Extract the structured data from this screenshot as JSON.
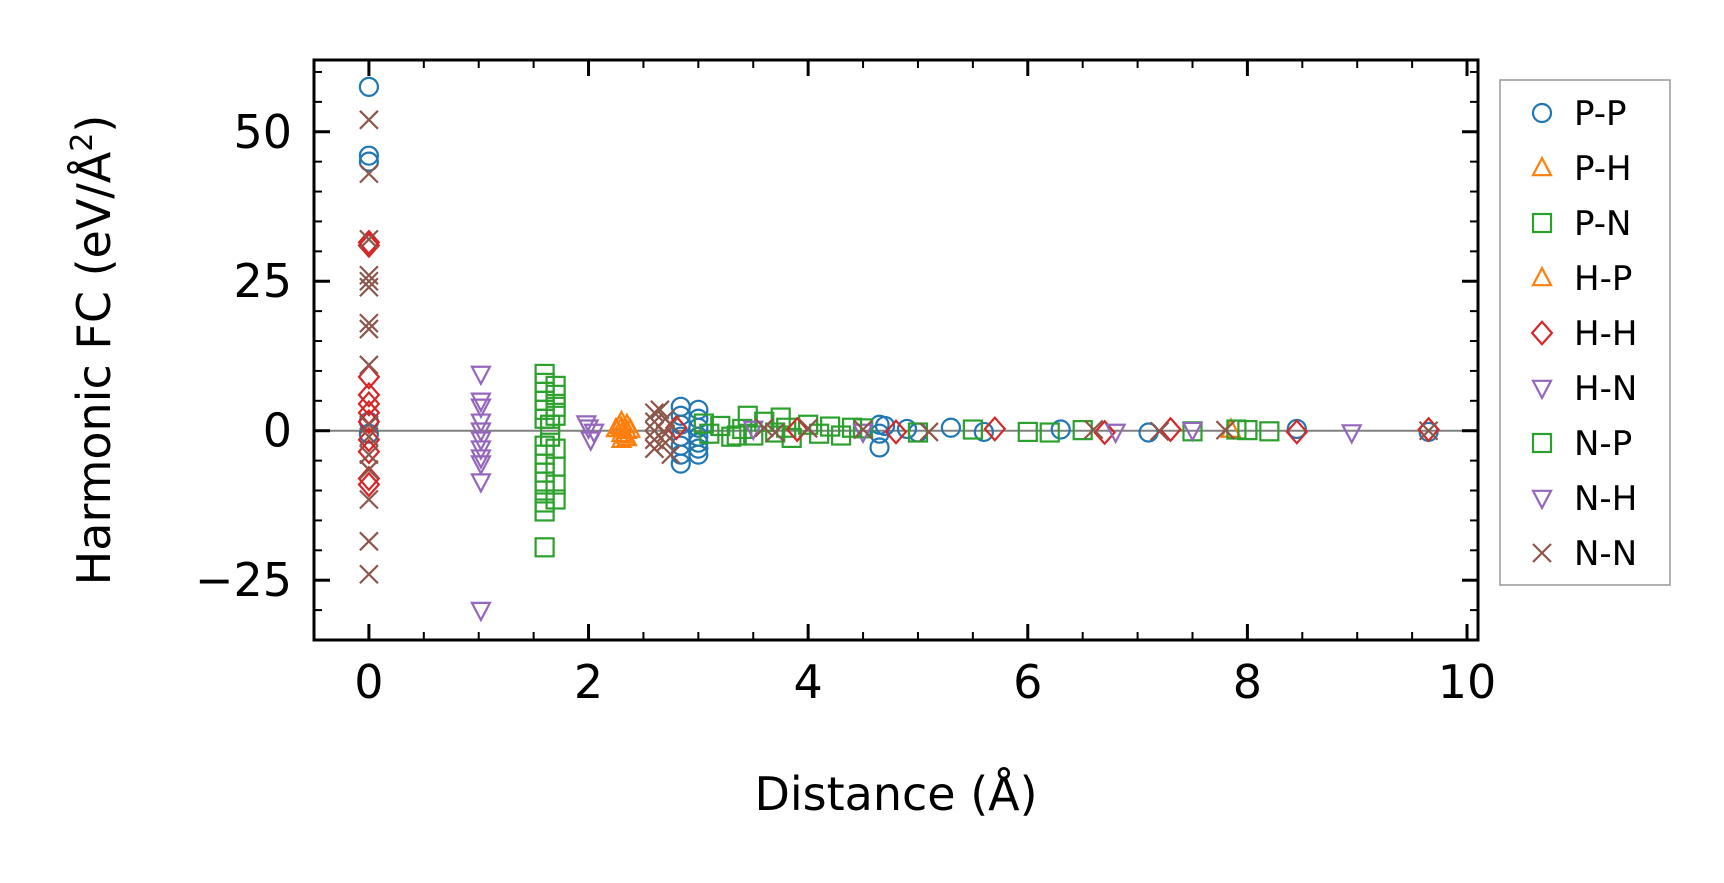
{
  "chart_data": {
    "type": "scatter",
    "title": "",
    "xlabel": "Distance (Å)",
    "ylabel": "Harmonic FC (eV/Å²)",
    "ylabel_parts": {
      "main": "Harmonic FC (eV/Å",
      "sup": "2",
      "end": ")"
    },
    "xlim": [
      -0.5,
      10.1
    ],
    "ylim": [
      -35,
      62
    ],
    "x_ticks": [
      0,
      2,
      4,
      6,
      8,
      10
    ],
    "x_tick_labels": [
      "0",
      "2",
      "4",
      "6",
      "8",
      "10"
    ],
    "y_ticks": [
      -25,
      0,
      25,
      50
    ],
    "y_tick_labels": [
      "−25",
      "0",
      "25",
      "50"
    ],
    "zero_line": true,
    "grid": false,
    "legend_position": "outside-right",
    "series": [
      {
        "name": "P-P",
        "marker": "circle",
        "color": "#1f77b4",
        "points": [
          [
            0,
            57.5
          ],
          [
            0,
            46
          ],
          [
            0,
            45
          ],
          [
            0,
            1.5
          ],
          [
            0,
            -0.5
          ],
          [
            2.84,
            4
          ],
          [
            2.84,
            2.5
          ],
          [
            2.84,
            1
          ],
          [
            2.84,
            -1
          ],
          [
            2.84,
            -2.5
          ],
          [
            2.84,
            -4
          ],
          [
            2.84,
            -5.5
          ],
          [
            3.0,
            3.5
          ],
          [
            3.0,
            2
          ],
          [
            3.0,
            0.5
          ],
          [
            3.0,
            -1
          ],
          [
            3.0,
            -2
          ],
          [
            3.0,
            -3
          ],
          [
            3.0,
            -4
          ],
          [
            4.65,
            1
          ],
          [
            4.65,
            -0.5
          ],
          [
            4.65,
            -2.8
          ],
          [
            4.7,
            0.8
          ],
          [
            4.9,
            0.3
          ],
          [
            5.0,
            -0.3
          ],
          [
            5.3,
            0.5
          ],
          [
            5.6,
            -0.2
          ],
          [
            6.3,
            0.2
          ],
          [
            7.1,
            -0.3
          ],
          [
            8.45,
            0.3
          ],
          [
            9.65,
            -0.2
          ]
        ]
      },
      {
        "name": "P-H",
        "marker": "triangle-up",
        "color": "#ff7f0e",
        "points": [
          [
            2.3,
            1.5
          ],
          [
            2.3,
            0.5
          ],
          [
            2.3,
            -0.5
          ],
          [
            2.3,
            -1.5
          ],
          [
            2.35,
            1
          ],
          [
            2.35,
            0
          ],
          [
            2.35,
            -1.2
          ],
          [
            2.25,
            0.3
          ],
          [
            7.85,
            0.2
          ]
        ]
      },
      {
        "name": "P-N",
        "marker": "square",
        "color": "#2ca02c",
        "points": [
          [
            1.6,
            9.5
          ],
          [
            1.6,
            8
          ],
          [
            1.6,
            6.5
          ],
          [
            1.6,
            5
          ],
          [
            1.6,
            3.5
          ],
          [
            1.6,
            2
          ],
          [
            1.6,
            -2.5
          ],
          [
            1.6,
            -4
          ],
          [
            1.6,
            -5.5
          ],
          [
            1.6,
            -7
          ],
          [
            1.6,
            -8.5
          ],
          [
            1.6,
            -10
          ],
          [
            1.6,
            -12
          ],
          [
            1.6,
            -13.5
          ],
          [
            1.6,
            -19.5
          ],
          [
            1.7,
            7.5
          ],
          [
            1.7,
            6
          ],
          [
            1.7,
            4
          ],
          [
            1.7,
            2.5
          ],
          [
            1.7,
            -3
          ],
          [
            1.7,
            -6
          ],
          [
            1.7,
            -9
          ],
          [
            1.7,
            -11.5
          ],
          [
            3.05,
            1.2
          ],
          [
            3.1,
            -0.5
          ],
          [
            3.2,
            0.8
          ],
          [
            3.3,
            -1
          ],
          [
            3.4,
            0.3
          ],
          [
            3.45,
            2.5
          ],
          [
            3.5,
            -0.8
          ],
          [
            3.6,
            1.5
          ],
          [
            3.7,
            -0.3
          ],
          [
            3.75,
            2.2
          ],
          [
            3.8,
            0.5
          ],
          [
            3.85,
            -1.2
          ],
          [
            4.0,
            1
          ],
          [
            4.1,
            -0.5
          ],
          [
            4.2,
            0.7
          ],
          [
            4.3,
            -0.8
          ],
          [
            4.5,
            0.4
          ],
          [
            5.0,
            -0.3
          ],
          [
            5.5,
            0.2
          ],
          [
            6.0,
            -0.2
          ],
          [
            6.5,
            0.1
          ],
          [
            7.5,
            -0.1
          ],
          [
            8.0,
            0.1
          ],
          [
            8.2,
            -0.1
          ]
        ]
      },
      {
        "name": "H-P",
        "marker": "triangle-up",
        "color": "#ff7f0e",
        "points": [
          [
            2.28,
            0.8
          ],
          [
            2.33,
            -0.8
          ],
          [
            2.38,
            0.2
          ]
        ]
      },
      {
        "name": "H-H",
        "marker": "diamond",
        "color": "#d62728",
        "points": [
          [
            0,
            31
          ],
          [
            0,
            31.5
          ],
          [
            0,
            9
          ],
          [
            0,
            6
          ],
          [
            0,
            4.5
          ],
          [
            0,
            3
          ],
          [
            0,
            1.5
          ],
          [
            0,
            -1.5
          ],
          [
            0,
            -3.5
          ],
          [
            0,
            -8
          ],
          [
            0,
            -9
          ],
          [
            2.8,
            0.5
          ],
          [
            3.9,
            0.2
          ],
          [
            4.8,
            -0.2
          ],
          [
            5.7,
            0.3
          ],
          [
            6.7,
            -0.3
          ],
          [
            7.3,
            0.2
          ],
          [
            8.45,
            -0.2
          ],
          [
            9.65,
            0.2
          ]
        ]
      },
      {
        "name": "H-N",
        "marker": "triangle-down",
        "color": "#9467bd",
        "points": [
          [
            1.02,
            9.5
          ],
          [
            1.02,
            5
          ],
          [
            1.02,
            4
          ],
          [
            1.02,
            1.5
          ],
          [
            1.02,
            0
          ],
          [
            1.02,
            -1.5
          ],
          [
            1.02,
            -3
          ],
          [
            1.02,
            -4.5
          ],
          [
            1.02,
            -5.5
          ],
          [
            1.02,
            -8.5
          ],
          [
            1.02,
            -30
          ],
          [
            2.0,
            0.5
          ],
          [
            4.5,
            -0.2
          ],
          [
            7.5,
            0.1
          ],
          [
            8.95,
            -0.3
          ]
        ]
      },
      {
        "name": "N-P",
        "marker": "square",
        "color": "#2ca02c",
        "points": [
          [
            1.65,
            -1
          ],
          [
            1.65,
            1
          ],
          [
            3.35,
            -0.8
          ],
          [
            4.4,
            0.5
          ],
          [
            6.2,
            -0.3
          ],
          [
            7.9,
            0.2
          ]
        ]
      },
      {
        "name": "N-H",
        "marker": "triangle-down",
        "color": "#9467bd",
        "points": [
          [
            1.98,
            1.2
          ],
          [
            2.05,
            -0.2
          ],
          [
            2.02,
            -1.5
          ],
          [
            3.5,
            0.3
          ],
          [
            6.8,
            -0.2
          ]
        ]
      },
      {
        "name": "N-N",
        "marker": "x",
        "color": "#8c564b",
        "points": [
          [
            0,
            52
          ],
          [
            0,
            43
          ],
          [
            0,
            32
          ],
          [
            0,
            26
          ],
          [
            0,
            25
          ],
          [
            0,
            24
          ],
          [
            0,
            18
          ],
          [
            0,
            17
          ],
          [
            0,
            11
          ],
          [
            0,
            1
          ],
          [
            0,
            -1
          ],
          [
            0,
            -4
          ],
          [
            0,
            -6.5
          ],
          [
            0,
            -11.5
          ],
          [
            0,
            -18.5
          ],
          [
            0,
            -24
          ],
          [
            2.6,
            3
          ],
          [
            2.6,
            1.5
          ],
          [
            2.6,
            0
          ],
          [
            2.6,
            -1.5
          ],
          [
            2.6,
            -3
          ],
          [
            2.7,
            2
          ],
          [
            2.7,
            -0.5
          ],
          [
            2.7,
            -2
          ],
          [
            2.75,
            1
          ],
          [
            2.75,
            -4
          ],
          [
            2.65,
            3.5
          ],
          [
            3.6,
            0.5
          ],
          [
            3.7,
            -0.3
          ],
          [
            4.0,
            0.4
          ],
          [
            4.5,
            0.2
          ],
          [
            5.1,
            -0.2
          ],
          [
            6.6,
            0.2
          ],
          [
            7.2,
            -0.1
          ],
          [
            7.8,
            0.1
          ],
          [
            9.65,
            0
          ]
        ]
      }
    ]
  }
}
